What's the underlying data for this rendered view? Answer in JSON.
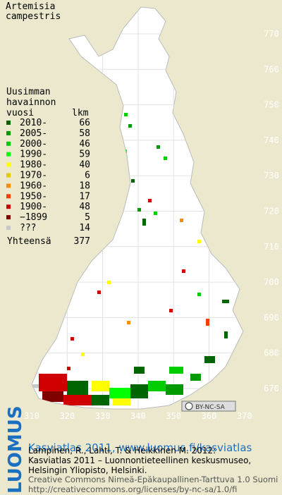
{
  "title_lines": [
    "Artemisia",
    "campestris"
  ],
  "legend": {
    "header_lines": [
      "Uusimman",
      "havainnon",
      "vuosi"
    ],
    "count_header": "lkm",
    "rows": [
      {
        "label": "2010-",
        "count": 66,
        "color": "#006400"
      },
      {
        "label": "2005-",
        "count": 58,
        "color": "#009a00"
      },
      {
        "label": "2000-",
        "count": 46,
        "color": "#00cc00"
      },
      {
        "label": "1990-",
        "count": 59,
        "color": "#00ff00"
      },
      {
        "label": "1980-",
        "count": 40,
        "color": "#ffff00"
      },
      {
        "label": "1970-",
        "count": 6,
        "color": "#e6c800"
      },
      {
        "label": "1960-",
        "count": 18,
        "color": "#ff8c00"
      },
      {
        "label": "1950-",
        "count": 17,
        "color": "#ff3c00"
      },
      {
        "label": "1900-",
        "count": 48,
        "color": "#d00000"
      },
      {
        "label": "−1899",
        "count": 5,
        "color": "#800000"
      },
      {
        "label": "???",
        "count": 14,
        "color": "#c8c8c8"
      }
    ],
    "total": {
      "label": "Yhteensä",
      "count": 377
    }
  },
  "northing_ticks": [
    770,
    760,
    750,
    740,
    730,
    720,
    710,
    700,
    690,
    680,
    670
  ],
  "easting_ticks": [
    310,
    320,
    330,
    340,
    350,
    360,
    370
  ],
  "license_badge": "BY-NC-SA",
  "footer": {
    "logo": "LUOMUS",
    "link": "Kasviatlas 2011, www.luomus.fi/kasviatlas",
    "citation": [
      "Lampinen, R., Lahti, T. & Heikkinen M. 2012:",
      "Kasviatlas 2011 – Luonnontieteellinen keskusmuseo,",
      "Helsingin Yliopisto, Helsinki."
    ],
    "license": [
      "Creative Commons Nimeä-Epäkaupallinen-Tarttuva 1.0 Suomi",
      "http://creativecommons.org/licenses/by-nc-sa/1.0/fi"
    ]
  }
}
